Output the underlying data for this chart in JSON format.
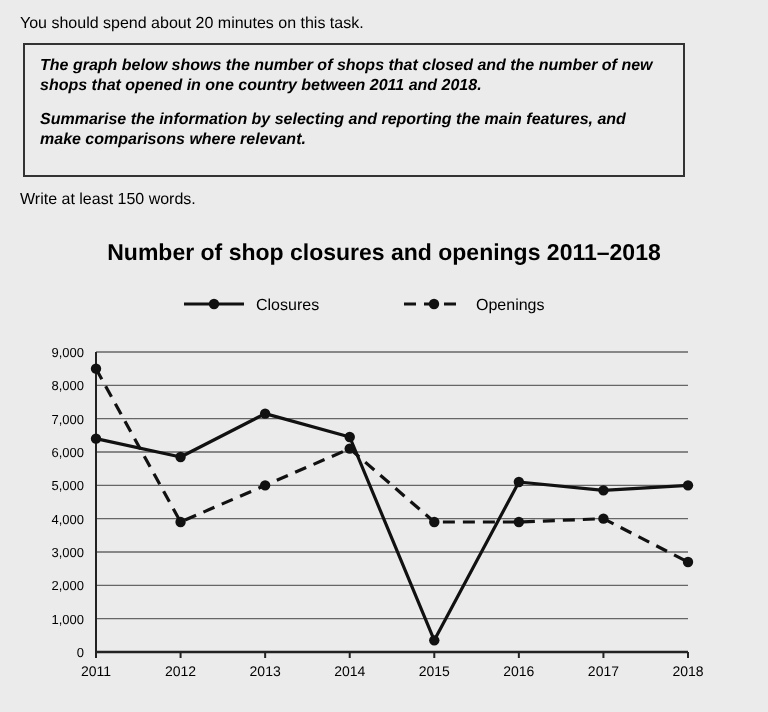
{
  "chart_data": {
    "type": "line",
    "title": "Number of shop closures and openings 2011–2018",
    "annotations": [
      "You should spend about 20 minutes on this task.",
      "The graph below shows the number of shops that closed and the number of new shops that opened in one country between 2011 and 2018.",
      "Summarise the information by selecting and reporting the main features, and make comparisons where relevant.",
      "Write at least 150 words."
    ],
    "categories": [
      "2011",
      "2012",
      "2013",
      "2014",
      "2015",
      "2016",
      "2017",
      "2018"
    ],
    "series": [
      {
        "name": "Closures",
        "color": "#111111",
        "line_style": "solid",
        "values": [
          6400,
          5850,
          7150,
          6450,
          350,
          5100,
          4850,
          5000
        ]
      },
      {
        "name": "Openings",
        "color": "#111111",
        "line_style": "dashed",
        "values": [
          8500,
          3900,
          5000,
          6100,
          3900,
          3900,
          4000,
          2700
        ]
      }
    ],
    "ylim": [
      0,
      9000
    ],
    "yticks": [
      {
        "value": 0,
        "label": "0"
      },
      {
        "value": 1000,
        "label": "1,000"
      },
      {
        "value": 2000,
        "label": "2,000"
      },
      {
        "value": 3000,
        "label": "3,000"
      },
      {
        "value": 4000,
        "label": "4,000"
      },
      {
        "value": 5000,
        "label": "5,000"
      },
      {
        "value": 6000,
        "label": "6,000"
      },
      {
        "value": 7000,
        "label": "7,000"
      },
      {
        "value": 8000,
        "label": "8,000"
      },
      {
        "value": 9000,
        "label": "9,000"
      }
    ],
    "grid": "y",
    "legend": "top",
    "marker": "circle"
  }
}
